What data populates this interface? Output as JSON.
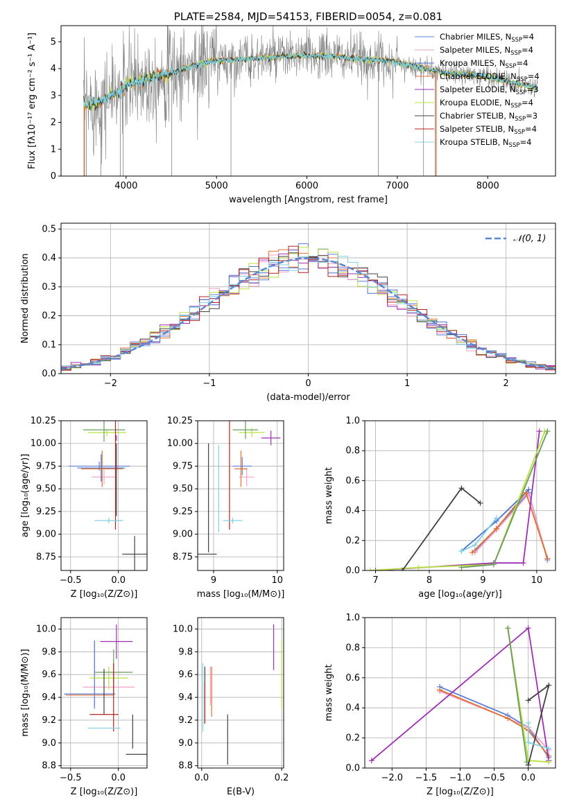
{
  "colors": {
    "chabrier_miles": "#5b7fd9",
    "salpeter_miles": "#f0a0c8",
    "kroupa_miles": "#4c6fcf",
    "chabrier_elodie": "#e07030",
    "salpeter_elodie": "#9a2fb0",
    "kroupa_elodie": "#b8e040",
    "chabrier_stelib": "#404040",
    "salpeter_stelib": "#b02020",
    "kroupa_stelib": "#7fd0e0",
    "data": "#808080",
    "grid": "#b0b0b0",
    "normal": "#5b85d0",
    "extra_green": "#6a9a5a"
  },
  "chart_data": [
    {
      "id": "spectrum",
      "type": "line",
      "title": "PLATE=2584, MJD=54153, FIBERID=0054, z=0.081",
      "xlabel": "wavelength [Angstrom, rest frame]",
      "ylabel": "Flux [fλ10⁻¹⁷ erg cm⁻² s⁻¹ A⁻¹]",
      "xlim": [
        3280,
        8750
      ],
      "ylim": [
        0,
        5.6
      ],
      "xticks": [
        4000,
        5000,
        6000,
        7000,
        8000
      ],
      "yticks": [
        0,
        1,
        2,
        3,
        4,
        5
      ],
      "continuum_model": {
        "x": [
          3530,
          3600,
          3700,
          3800,
          3900,
          4000,
          4100,
          4300,
          4500,
          4700,
          4900,
          5100,
          5300,
          5500,
          5800,
          6000,
          6300,
          6600,
          6900,
          7100,
          7300,
          7500,
          7700,
          8000,
          8300,
          8550
        ],
        "y": [
          2.6,
          2.7,
          2.75,
          2.95,
          3.1,
          3.35,
          3.5,
          3.7,
          3.85,
          4.05,
          4.25,
          4.3,
          4.35,
          4.4,
          4.45,
          4.5,
          4.45,
          4.35,
          4.3,
          4.15,
          4.0,
          3.85,
          3.8,
          3.7,
          3.45,
          3.3
        ]
      },
      "legend": [
        "Chabrier MILES, N_SSP=4",
        "Salpeter MILES, N_SSP=4",
        "Kroupa MILES, N_SSP=4",
        "Chabrier ELODIE, N_SSP=4",
        "Salpeter ELODIE, N_SSP=3",
        "Kroupa ELODIE, N_SSP=4",
        "Chabrier STELIB, N_SSP=3",
        "Salpeter STELIB, N_SSP=4",
        "Kroupa STELIB, N_SSP=4"
      ]
    },
    {
      "id": "residuals",
      "type": "histogram",
      "xlabel": "(data-model)/error",
      "ylabel": "Normed distribution",
      "xlim": [
        -2.5,
        2.5
      ],
      "ylim": [
        0,
        0.52
      ],
      "xticks": [
        -2,
        -1,
        0,
        1,
        2
      ],
      "yticks": [
        0.0,
        0.1,
        0.2,
        0.3,
        0.4,
        0.5
      ],
      "legend": "𝒩(0, 1)",
      "bin_width": 0.1
    },
    {
      "id": "age_vs_z",
      "type": "errorbar",
      "xlabel": "Z [log₁₀(Z/Z⊙)]",
      "ylabel": "age  [log₁₀(age/yr)]",
      "xlim": [
        -0.6,
        0.3
      ],
      "ylim": [
        8.6,
        10.25
      ],
      "xticks": [
        -0.5,
        0.0
      ],
      "yticks": [
        8.75,
        9.0,
        9.25,
        9.5,
        9.75,
        10.0,
        10.25
      ],
      "points": [
        {
          "c": "chabrier_miles",
          "x": -0.2,
          "xe": 0.32,
          "y": 9.75,
          "ye": 0.05
        },
        {
          "c": "salpeter_miles",
          "x": -0.15,
          "xe": 0.13,
          "y": 9.63,
          "ye": 0.08
        },
        {
          "c": "kroupa_miles",
          "x": -0.18,
          "xe": 0.25,
          "y": 9.73,
          "ye": 0.15
        },
        {
          "c": "chabrier_elodie",
          "x": -0.17,
          "xe": 0.22,
          "y": 9.72,
          "ye": 0.2
        },
        {
          "c": "salpeter_elodie",
          "x": -0.02,
          "xe": 0.0,
          "y": 10.06,
          "ye": 0.03
        },
        {
          "c": "kroupa_elodie",
          "x": -0.12,
          "xe": 0.2,
          "y": 10.12,
          "ye": 0.04
        },
        {
          "c": "extra_green",
          "x": -0.15,
          "xe": 0.22,
          "y": 10.15,
          "ye": 0.13
        },
        {
          "c": "chabrier_stelib",
          "x": 0.17,
          "xe": 0.13,
          "y": 8.78,
          "ye": 0.2
        },
        {
          "c": "chabrier_stelib",
          "x": -0.02,
          "xe": 0.0,
          "y": 9.6,
          "ye": 0.4
        },
        {
          "c": "salpeter_stelib",
          "x": -0.03,
          "xe": 0.0,
          "y": 9.65,
          "ye": 0.6
        },
        {
          "c": "kroupa_stelib",
          "x": -0.1,
          "xe": 0.15,
          "y": 9.15,
          "ye": 0.03
        }
      ]
    },
    {
      "id": "age_vs_mass",
      "type": "errorbar",
      "xlabel": "mass [log₁₀(M/M⊙)]",
      "ylabel": "",
      "xlim": [
        8.75,
        10.1
      ],
      "ylim": [
        8.6,
        10.25
      ],
      "xticks": [
        9,
        10
      ],
      "yticks": [
        8.75,
        9.0,
        9.25,
        9.5,
        9.75,
        10.0,
        10.25
      ],
      "points": [
        {
          "c": "chabrier_miles",
          "x": 9.45,
          "xe": 0.15,
          "y": 9.75,
          "ye": 0.1
        },
        {
          "c": "salpeter_miles",
          "x": 9.52,
          "xe": 0.12,
          "y": 9.63,
          "ye": 0.1
        },
        {
          "c": "chabrier_elodie",
          "x": 9.43,
          "xe": 0.1,
          "y": 9.72,
          "ye": 0.2
        },
        {
          "c": "salpeter_elodie",
          "x": 9.9,
          "xe": 0.15,
          "y": 10.06,
          "ye": 0.08
        },
        {
          "c": "kroupa_elodie",
          "x": 9.6,
          "xe": 0.2,
          "y": 10.12,
          "ye": 0.05
        },
        {
          "c": "extra_green",
          "x": 9.5,
          "xe": 0.2,
          "y": 10.15,
          "ye": 0.1
        },
        {
          "c": "chabrier_stelib",
          "x": 8.9,
          "xe": 0.15,
          "y": 8.78,
          "ye": 0.0
        },
        {
          "c": "chabrier_stelib",
          "x": 8.92,
          "xe": 0.0,
          "y": 9.4,
          "ye": 0.6
        },
        {
          "c": "salpeter_stelib",
          "x": 9.25,
          "xe": 0.0,
          "y": 9.65,
          "ye": 0.6
        },
        {
          "c": "kroupa_stelib",
          "x": 9.3,
          "xe": 0.15,
          "y": 9.15,
          "ye": 0.03
        },
        {
          "c": "kroupa_stelib",
          "x": 9.08,
          "xe": 0.0,
          "y": 9.5,
          "ye": 0.48
        }
      ]
    },
    {
      "id": "weight_vs_age",
      "type": "line",
      "xlabel": "age  [log₁₀(age/yr)]",
      "ylabel": "mass weight",
      "xlim": [
        6.8,
        10.35
      ],
      "ylim": [
        0,
        1
      ],
      "xticks": [
        7,
        8,
        9,
        10
      ],
      "yticks": [
        0.0,
        0.2,
        0.4,
        0.6,
        0.8,
        1.0
      ],
      "series": [
        {
          "c": "chabrier_miles",
          "x": [
            8.85,
            9.25,
            9.85,
            10.2
          ],
          "y": [
            0.13,
            0.28,
            0.52,
            0.07
          ]
        },
        {
          "c": "salpeter_miles",
          "x": [
            8.85,
            9.25,
            9.85,
            10.2
          ],
          "y": [
            0.12,
            0.27,
            0.51,
            0.08
          ]
        },
        {
          "c": "kroupa_miles",
          "x": [
            8.6,
            9.25,
            9.85
          ],
          "y": [
            0.13,
            0.33,
            0.54
          ]
        },
        {
          "c": "chabrier_elodie",
          "x": [
            8.8,
            9.25,
            9.8,
            10.2
          ],
          "y": [
            0.12,
            0.28,
            0.52,
            0.08
          ]
        },
        {
          "c": "salpeter_elodie",
          "x": [
            7.0,
            9.2,
            9.75,
            10.05
          ],
          "y": [
            0.0,
            0.05,
            0.05,
            0.93
          ]
        },
        {
          "c": "kroupa_elodie",
          "x": [
            6.9,
            7.8,
            9.2,
            10.15
          ],
          "y": [
            0.0,
            0.02,
            0.04,
            0.93
          ]
        },
        {
          "c": "extra_green",
          "x": [
            8.6,
            9.2,
            10.2
          ],
          "y": [
            0.02,
            0.04,
            0.93
          ]
        },
        {
          "c": "chabrier_stelib",
          "x": [
            7.5,
            8.6,
            8.95
          ],
          "y": [
            0.0,
            0.55,
            0.45
          ]
        },
        {
          "c": "kroupa_stelib",
          "x": [
            8.6,
            8.85,
            9.25
          ],
          "y": [
            0.13,
            0.17,
            0.35
          ]
        }
      ]
    },
    {
      "id": "mass_vs_z",
      "type": "errorbar",
      "xlabel": "Z [log₁₀(Z/Z⊙)]",
      "ylabel": "mass [log₁₀(M/M⊙)]",
      "xlim": [
        -0.6,
        0.3
      ],
      "ylim": [
        8.78,
        10.1
      ],
      "xticks": [
        -0.5,
        0.0
      ],
      "yticks": [
        8.8,
        9.0,
        9.2,
        9.4,
        9.6,
        9.8,
        10.0
      ],
      "points": [
        {
          "c": "chabrier_miles",
          "x": -0.3,
          "xe": 0.27,
          "y": 9.43,
          "ye": 0.0
        },
        {
          "c": "salpeter_miles",
          "x": -0.1,
          "xe": 0.27,
          "y": 9.49,
          "ye": 0.0
        },
        {
          "c": "kroupa_miles",
          "x": -0.25,
          "xe": 0.0,
          "y": 9.6,
          "ye": 0.3
        },
        {
          "c": "chabrier_elodie",
          "x": -0.3,
          "xe": 0.25,
          "y": 9.42,
          "ye": 0.0
        },
        {
          "c": "salpeter_elodie",
          "x": -0.02,
          "xe": 0.17,
          "y": 9.89,
          "ye": 0.15
        },
        {
          "c": "kroupa_elodie",
          "x": -0.1,
          "xe": 0.2,
          "y": 9.57,
          "ye": 0.1
        },
        {
          "c": "extra_green",
          "x": -0.05,
          "xe": 0.2,
          "y": 9.62,
          "ye": 0.2
        },
        {
          "c": "chabrier_stelib",
          "x": 0.2,
          "xe": 0.12,
          "y": 8.9,
          "ye": 0.0
        },
        {
          "c": "chabrier_stelib",
          "x": 0.15,
          "xe": 0.0,
          "y": 9.1,
          "ye": 0.15
        },
        {
          "c": "chabrier_stelib",
          "x": -0.15,
          "xe": 0.0,
          "y": 9.45,
          "ye": 0.2
        },
        {
          "c": "salpeter_stelib",
          "x": -0.15,
          "xe": 0.15,
          "y": 9.25,
          "ye": 0.0
        },
        {
          "c": "salpeter_stelib",
          "x": -0.05,
          "xe": 0.0,
          "y": 9.4,
          "ye": 0.3
        },
        {
          "c": "kroupa_stelib",
          "x": -0.15,
          "xe": 0.17,
          "y": 9.13,
          "ye": 0.0
        }
      ]
    },
    {
      "id": "mass_vs_ebv",
      "type": "errorbar",
      "xlabel": "E(B-V)",
      "ylabel": "",
      "xlim": [
        -0.01,
        0.205
      ],
      "ylim": [
        8.78,
        10.1
      ],
      "xticks": [
        0.0,
        0.2
      ],
      "yticks": [
        8.8,
        9.0,
        9.2,
        9.4,
        9.6,
        9.8,
        10.0
      ],
      "points": [
        {
          "c": "kroupa_stelib",
          "x": 0.003,
          "xe": 0,
          "y": 9.4,
          "ye": 0.3
        },
        {
          "c": "chabrier_stelib",
          "x": 0.008,
          "xe": 0,
          "y": 9.42,
          "ye": 0.25
        },
        {
          "c": "salpeter_stelib",
          "x": 0.008,
          "xe": 0,
          "y": 9.35,
          "ye": 0.18
        },
        {
          "c": "salpeter_miles",
          "x": 0.022,
          "xe": 0,
          "y": 9.5,
          "ye": 0.17
        },
        {
          "c": "chabrier_elodie",
          "x": 0.025,
          "xe": 0,
          "y": 9.45,
          "ye": 0.22
        },
        {
          "c": "chabrier_stelib",
          "x": 0.065,
          "xe": 0,
          "y": 9.03,
          "ye": 0.22
        },
        {
          "c": "salpeter_elodie",
          "x": 0.18,
          "xe": 0,
          "y": 9.84,
          "ye": 0.2
        },
        {
          "c": "kroupa_elodie",
          "x": 0.2,
          "xe": 0,
          "y": 9.6,
          "ye": 0.3
        }
      ]
    },
    {
      "id": "weight_vs_z",
      "type": "line",
      "xlabel": "Z [log₁₀(Z/Z⊙)]",
      "ylabel": "mass weight",
      "xlim": [
        -2.4,
        0.4
      ],
      "ylim": [
        0,
        1
      ],
      "xticks": [
        -2.0,
        -1.5,
        -1.0,
        -0.5,
        0.0
      ],
      "yticks": [
        0.0,
        0.2,
        0.4,
        0.6,
        0.8,
        1.0
      ],
      "series": [
        {
          "c": "chabrier_miles",
          "x": [
            -1.3,
            -0.3,
            0.0,
            0.3
          ],
          "y": [
            0.54,
            0.35,
            0.27,
            0.07
          ]
        },
        {
          "c": "salpeter_miles",
          "x": [
            -1.3,
            -0.3,
            0.0,
            0.3
          ],
          "y": [
            0.51,
            0.33,
            0.27,
            0.12
          ]
        },
        {
          "c": "chabrier_elodie",
          "x": [
            -1.3,
            -0.3,
            0.0,
            0.3
          ],
          "y": [
            0.52,
            0.33,
            0.25,
            0.08
          ]
        },
        {
          "c": "salpeter_elodie",
          "x": [
            -2.3,
            0.0,
            0.3
          ],
          "y": [
            0.05,
            0.93,
            0.05
          ]
        },
        {
          "c": "kroupa_elodie",
          "x": [
            -0.3,
            0.0,
            0.3
          ],
          "y": [
            0.93,
            0.05,
            0.04
          ]
        },
        {
          "c": "extra_green",
          "x": [
            -0.3,
            -0.02
          ],
          "y": [
            0.93,
            0.04
          ]
        },
        {
          "c": "chabrier_stelib",
          "x": [
            0.0,
            0.3,
            0.0
          ],
          "y": [
            0.45,
            0.55,
            0.02
          ]
        },
        {
          "c": "kroupa_stelib",
          "x": [
            0.0,
            0.0,
            0.3
          ],
          "y": [
            0.3,
            0.17,
            0.13
          ]
        }
      ]
    }
  ]
}
